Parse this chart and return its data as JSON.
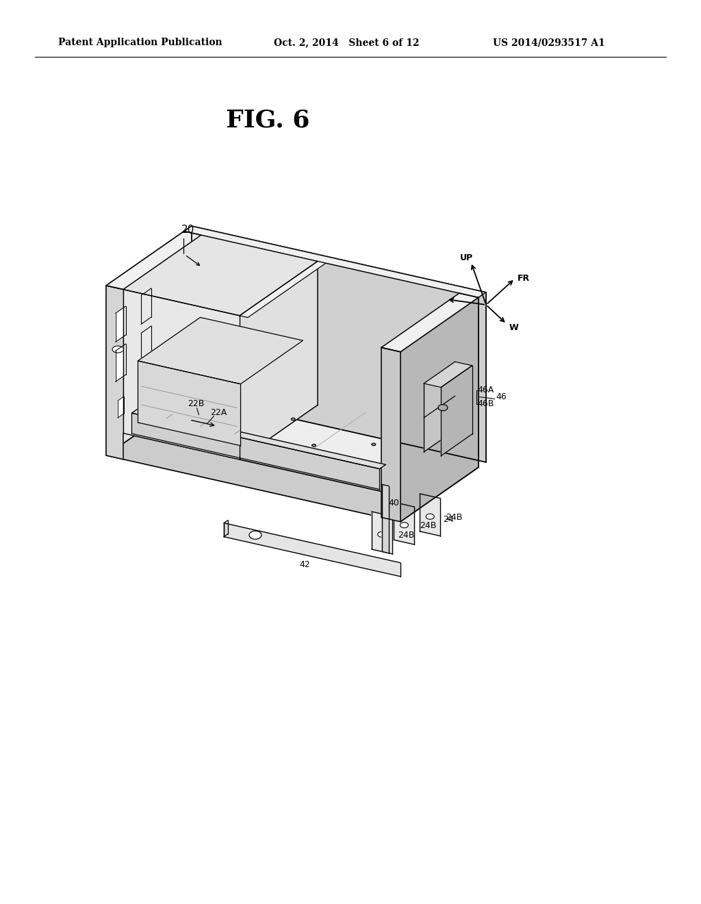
{
  "background_color": "#ffffff",
  "header_left": "Patent Application Publication",
  "header_mid": "Oct. 2, 2014   Sheet 6 of 12",
  "header_right": "US 2014/0293517 A1",
  "fig_label": "FIG. 6",
  "text_color": "#000000",
  "line_color": "#000000",
  "shade_top": "#e8e8e8",
  "shade_front": "#d0d0d0",
  "shade_right": "#c0c0c0",
  "shade_inner": "#f0f0f0"
}
